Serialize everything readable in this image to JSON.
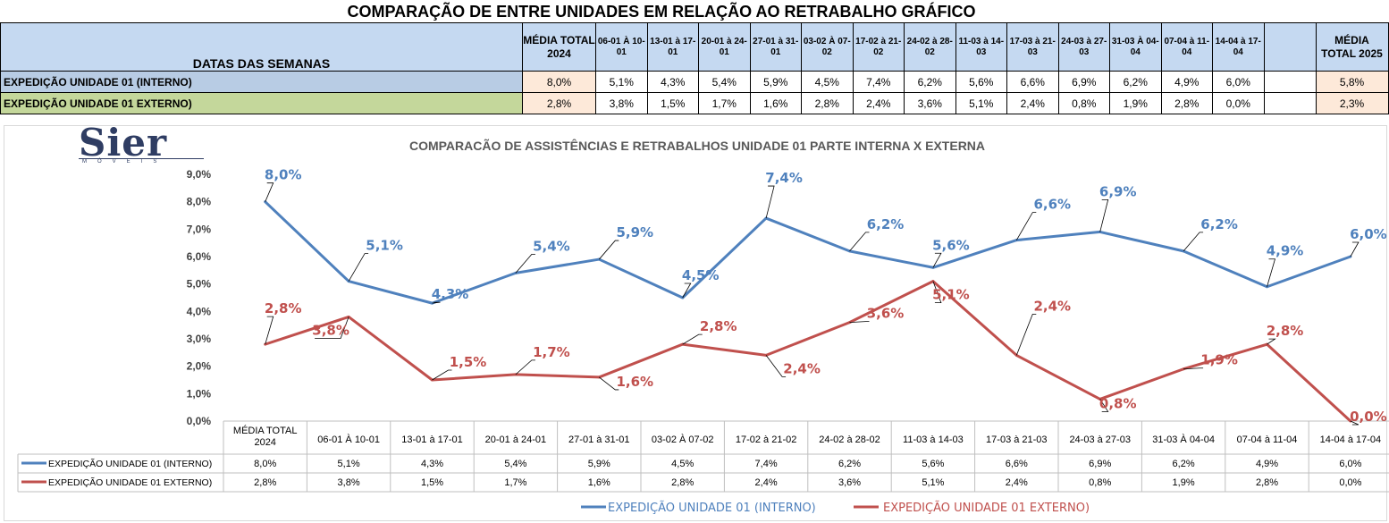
{
  "page_title": "COMPARAÇÃO DE ENTRE UNIDADES EM RELAÇÃO AO RETRABALHO GRÁFICO",
  "summary_table": {
    "header_label": "DATAS DAS SEMANAS",
    "avg2024_header": "MÉDIA TOTAL 2024",
    "avg2025_header": "MÉDIA TOTAL 2025",
    "week_headers": [
      "06-01 À 10-01",
      "13-01 à 17-01",
      "20-01 à 24-01",
      "27-01 à 31-01",
      "03-02 À 07-02",
      "17-02 à 21-02",
      "24-02 à 28-02",
      "11-03 à 14-03",
      "17-03 à 21-03",
      "24-03 à 27-03",
      "31-03 À 04-04",
      "07-04 à 11-04",
      "14-04 à 17-04",
      ""
    ],
    "rows": [
      {
        "label": "EXPEDIÇÃO UNIDADE 01 (INTERNO)",
        "avg2024": "8,0%",
        "weeks": [
          "5,1%",
          "4,3%",
          "5,4%",
          "5,9%",
          "4,5%",
          "7,4%",
          "6,2%",
          "5,6%",
          "6,6%",
          "6,9%",
          "6,2%",
          "4,9%",
          "6,0%",
          ""
        ],
        "avg2025": "5,8%"
      },
      {
        "label": "EXPEDIÇÃO UNIDADE 01 EXTERNO)",
        "avg2024": "2,8%",
        "weeks": [
          "3,8%",
          "1,5%",
          "1,7%",
          "1,6%",
          "2,8%",
          "2,4%",
          "3,6%",
          "5,1%",
          "2,4%",
          "0,8%",
          "1,9%",
          "2,8%",
          "0,0%",
          ""
        ],
        "avg2025": "2,3%"
      }
    ]
  },
  "logo": {
    "word": "Sier",
    "sub": "MÓVEIS"
  },
  "chart_data": {
    "type": "line",
    "title": "COMPARACÃO DE ASSISTÊNCIAS E RETRABALHOS UNIDADE 01 PARTE INTERNA X EXTERNA",
    "categories": [
      "MÉDIA TOTAL 2024",
      "06-01 À 10-01",
      "13-01 à 17-01",
      "20-01 à 24-01",
      "27-01 à 31-01",
      "03-02 À 07-02",
      "17-02 à 21-02",
      "24-02 à 28-02",
      "11-03 à 14-03",
      "17-03 à 21-03",
      "24-03 à 27-03",
      "31-03 À 04-04",
      "07-04 à 11-04",
      "14-04 à 17-04"
    ],
    "y_ticks": [
      "0,0%",
      "1,0%",
      "2,0%",
      "3,0%",
      "4,0%",
      "5,0%",
      "6,0%",
      "7,0%",
      "8,0%",
      "9,0%"
    ],
    "ylim": [
      0,
      9
    ],
    "legend_position": "bottom",
    "data_table": true,
    "series": [
      {
        "name": "EXPEDIÇÃO UNIDADE 01 (INTERNO)",
        "color": "#4f81bd",
        "values": [
          8.0,
          5.1,
          4.3,
          5.4,
          5.9,
          4.5,
          7.4,
          6.2,
          5.6,
          6.6,
          6.9,
          6.2,
          4.9,
          6.0
        ],
        "labels": [
          "8,0%",
          "5,1%",
          "4,3%",
          "5,4%",
          "5,9%",
          "4,5%",
          "7,4%",
          "6,2%",
          "5,6%",
          "6,6%",
          "6,9%",
          "6,2%",
          "4,9%",
          "6,0%"
        ]
      },
      {
        "name": "EXPEDIÇÃO UNIDADE 01 EXTERNO)",
        "color": "#c0504d",
        "values": [
          2.8,
          3.8,
          1.5,
          1.7,
          1.6,
          2.8,
          2.4,
          3.6,
          5.1,
          2.4,
          0.8,
          1.9,
          2.8,
          0.0
        ],
        "labels": [
          "2,8%",
          "3,8%",
          "1,5%",
          "1,7%",
          "1,6%",
          "2,8%",
          "2,4%",
          "3,6%",
          "5,1%",
          "2,4%",
          "0,8%",
          "1,9%",
          "2,8%",
          "0,0%"
        ]
      }
    ]
  }
}
